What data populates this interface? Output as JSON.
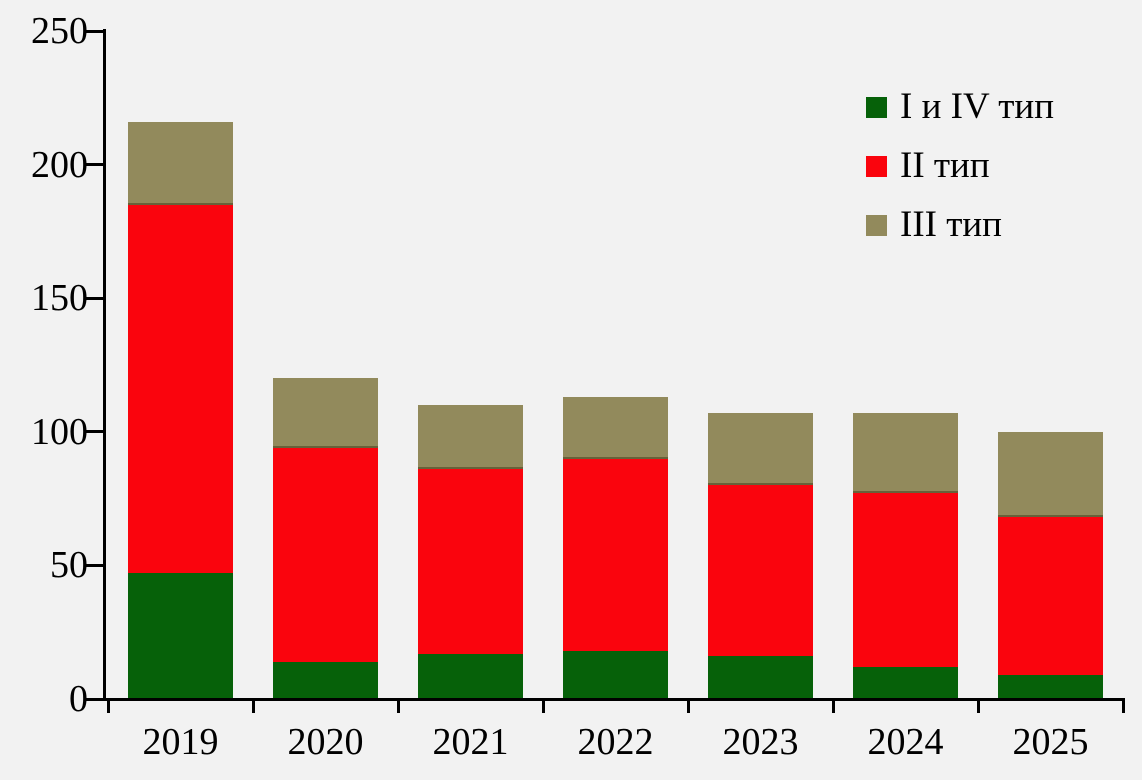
{
  "chart_data": {
    "type": "bar",
    "stacked": true,
    "title": "",
    "xlabel": "",
    "ylabel": "",
    "categories": [
      "2019",
      "2020",
      "2021",
      "2022",
      "2023",
      "2024",
      "2025"
    ],
    "series": [
      {
        "name": "I и IV тип",
        "color": "#066109",
        "values": [
          47,
          14,
          17,
          18,
          16,
          12,
          9
        ]
      },
      {
        "name": "II тип",
        "color": "#fa040d",
        "values": [
          138,
          80,
          69,
          72,
          64,
          65,
          59
        ]
      },
      {
        "name": "III тип",
        "color": "#928a5c",
        "values": [
          31,
          26,
          24,
          23,
          27,
          30,
          32
        ]
      }
    ],
    "stack_totals": [
      216,
      120,
      110,
      113,
      107,
      107,
      100
    ],
    "ylim": [
      0,
      250
    ],
    "yticks": [
      0,
      50,
      100,
      150,
      200,
      250
    ],
    "grid": false,
    "legend_position": "upper right",
    "background_color": "#f2f2f2",
    "axis_color": "#000000"
  }
}
